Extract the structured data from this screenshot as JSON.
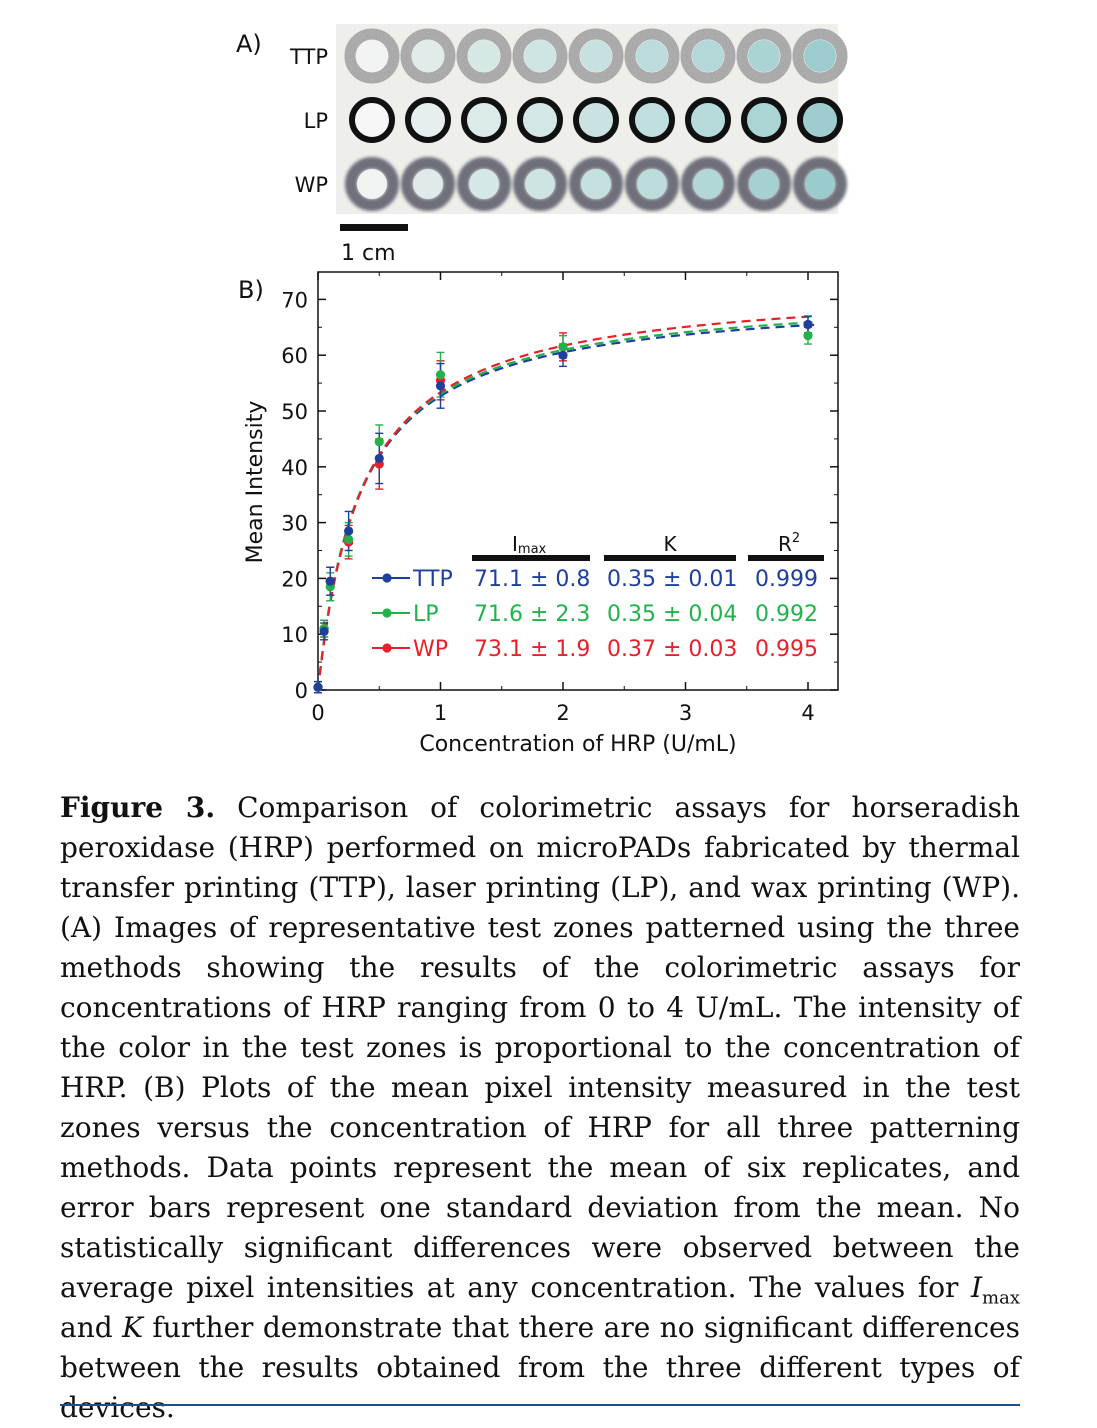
{
  "panel_a": {
    "label": "A)",
    "rows": [
      {
        "label": "TTP",
        "ring_color": "#8a8a8a",
        "ring_style": "speckled",
        "fills": [
          "#f2f4f3",
          "#e1ebea",
          "#d6e8e6",
          "#cfe5e3",
          "#c6e1df",
          "#bcdcdb",
          "#b4d8d8",
          "#aad3d4",
          "#9dccce"
        ]
      },
      {
        "label": "LP",
        "ring_color": "#111111",
        "ring_style": "solid",
        "fills": [
          "#f6f7f6",
          "#e6efee",
          "#dbebea",
          "#d3e7e6",
          "#cae3e2",
          "#c0dfde",
          "#b7dada",
          "#abd4d5",
          "#9fcdcf"
        ]
      },
      {
        "label": "WP",
        "ring_color": "#6e6f7a",
        "ring_style": "soft",
        "fills": [
          "#f1f4f3",
          "#e0eaea",
          "#d5e7e6",
          "#cde4e3",
          "#c4e0df",
          "#bbdcdb",
          "#b1d7d7",
          "#a6d1d2",
          "#9acbcd"
        ]
      }
    ],
    "scale_bar_label": "1 cm"
  },
  "chart_data": {
    "type": "scatter",
    "panel_label": "B)",
    "xlabel": "Concentration of HRP (U/mL)",
    "ylabel": "Mean Intensity",
    "xlim": [
      0,
      4.2
    ],
    "ylim": [
      0,
      70
    ],
    "xticks": [
      0,
      1,
      2,
      3,
      4
    ],
    "yticks": [
      0,
      10,
      20,
      30,
      40,
      50,
      60,
      70
    ],
    "x": [
      0,
      0.05,
      0.1,
      0.25,
      0.5,
      1,
      2,
      4
    ],
    "series": [
      {
        "name": "TTP",
        "color": "#1f3f9c",
        "y": [
          0.5,
          10.5,
          19.5,
          28.5,
          41.5,
          54.5,
          60,
          65.5
        ],
        "err": [
          1,
          1.5,
          2.5,
          3.5,
          4.5,
          4,
          2,
          1.5
        ],
        "fit": {
          "Imax": 71.1,
          "K": 0.35
        }
      },
      {
        "name": "LP",
        "color": "#22b24c",
        "y": [
          0.5,
          11,
          18.5,
          27,
          44.5,
          56.5,
          61.5,
          63.5
        ],
        "err": [
          1,
          1.5,
          2.5,
          3,
          3,
          4,
          2,
          1.5
        ],
        "fit": {
          "Imax": 71.6,
          "K": 0.35
        }
      },
      {
        "name": "WP",
        "color": "#e8202a",
        "y": [
          0.5,
          11,
          19.5,
          26.5,
          40.5,
          55.5,
          61.5,
          65.5
        ],
        "err": [
          1,
          1.5,
          2.5,
          3,
          4.5,
          3.5,
          2.5,
          1.5
        ],
        "fit": {
          "Imax": 73.1,
          "K": 0.37
        }
      }
    ],
    "table": {
      "headers": [
        "I",
        "max",
        "K",
        "R",
        "2"
      ],
      "rows": [
        {
          "label": "TTP",
          "imax": "71.1 ± 0.8",
          "k": "0.35 ± 0.01",
          "r2": "0.999"
        },
        {
          "label": "LP",
          "imax": "71.6 ± 2.3",
          "k": "0.35 ± 0.04",
          "r2": "0.992"
        },
        {
          "label": "WP",
          "imax": "73.1 ± 1.9",
          "k": "0.37 ± 0.03",
          "r2": "0.995"
        }
      ]
    }
  },
  "caption": {
    "fig_label": "Figure 3.",
    "p1": " Comparison of colorimetric assays for horseradish peroxidase (HRP) performed on microPADs fabricated by thermal transfer printing (TTP), laser printing (LP), and wax printing (WP). (A) Images of representative test zones patterned using the three methods showing the results of the colorimetric assays for concentrations of HRP ranging from 0 to 4 U/mL. The intensity of the color in the test zones is proportional to the concentration of HRP. (B) Plots of the mean pixel intensity measured in the test zones versus the concentration of HRP for all three patterning methods. Data points represent the mean of six replicates, and error bars represent one standard deviation from the mean. No statistically significant differences were observed between the average pixel intensities at any concentration. The values for ",
    "imax_i": "I",
    "imax_sub": "max",
    "and": " and ",
    "k_i": "K",
    "p2": " further demonstrate that there are no significant differences between the results obtained from the three different types of devices."
  }
}
